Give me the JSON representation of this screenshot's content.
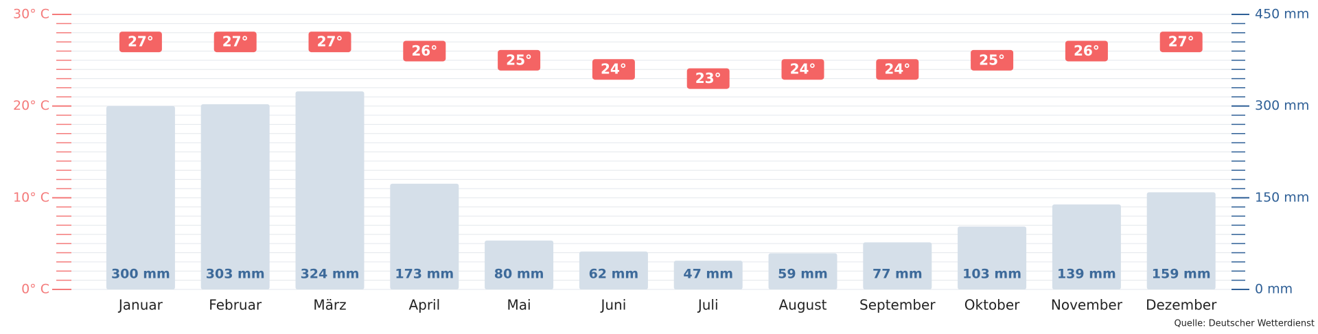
{
  "chart_data": {
    "type": "bar",
    "categories": [
      "Januar",
      "Februar",
      "März",
      "April",
      "Mai",
      "Juni",
      "Juli",
      "August",
      "September",
      "Oktober",
      "November",
      "Dezember"
    ],
    "series": [
      {
        "marker": "label",
        "axis": "y",
        "color": "#f46464",
        "values": [
          27,
          27,
          27,
          26,
          25,
          24,
          23,
          24,
          24,
          25,
          26,
          27
        ],
        "value_labels": [
          "27°",
          "27°",
          "27°",
          "26°",
          "25°",
          "24°",
          "23°",
          "24°",
          "24°",
          "25°",
          "26°",
          "27°"
        ]
      },
      {
        "marker": "bar",
        "axis": "y2",
        "color": "#d5dfe9",
        "label_color": "#3d6a9a",
        "values": [
          300,
          303,
          324,
          173,
          80,
          62,
          47,
          59,
          77,
          103,
          139,
          159
        ],
        "value_labels": [
          "300 mm",
          "303 mm",
          "324 mm",
          "173 mm",
          "80 mm",
          "62 mm",
          "47 mm",
          "59 mm",
          "77 mm",
          "103 mm",
          "139 mm",
          "159 mm"
        ]
      }
    ],
    "ylim": [
      0,
      30
    ],
    "yticks": [
      {
        "value": 0,
        "label": "0° C"
      },
      {
        "value": 10,
        "label": "10° C"
      },
      {
        "value": 20,
        "label": "20° C"
      },
      {
        "value": 30,
        "label": "30° C"
      }
    ],
    "y2lim": [
      0,
      450
    ],
    "y2ticks": [
      {
        "value": 0,
        "label": "0 mm"
      },
      {
        "value": 150,
        "label": "150 mm"
      },
      {
        "value": 300,
        "label": "300 mm"
      },
      {
        "value": 450,
        "label": "450 mm"
      }
    ],
    "y_color": "#f47a7a",
    "y2_color": "#2e5f96",
    "grid": true,
    "source": "Quelle: Deutscher Wetterdienst"
  }
}
